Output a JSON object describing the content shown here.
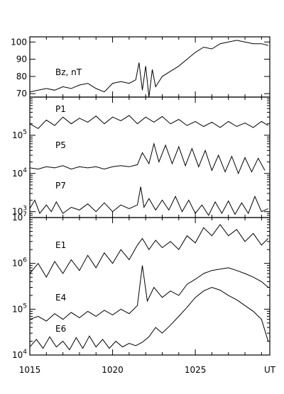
{
  "chart_data": [
    {
      "type": "line",
      "panel": "top",
      "ylim": [
        68,
        103
      ],
      "yscale": "linear",
      "yticks": [
        {
          "value": 70,
          "label": "70"
        },
        {
          "value": 80,
          "label": "80"
        },
        {
          "value": 90,
          "label": "90"
        },
        {
          "value": 100,
          "label": "100"
        }
      ],
      "series": [
        {
          "name": "Bz, nT",
          "x": [
            1015.0,
            1015.5,
            1016.0,
            1016.5,
            1017.0,
            1017.5,
            1018.0,
            1018.5,
            1019.0,
            1019.5,
            1020.0,
            1020.5,
            1021.0,
            1021.4,
            1021.6,
            1021.8,
            1022.0,
            1022.2,
            1022.4,
            1022.6,
            1022.8,
            1023.0,
            1023.5,
            1024.0,
            1024.5,
            1025.0,
            1025.5,
            1026.0,
            1026.5,
            1027.0,
            1027.5,
            1028.0,
            1028.5,
            1029.0,
            1029.4
          ],
          "values": [
            71,
            72,
            73,
            72,
            74,
            73,
            75,
            76,
            73,
            71,
            76,
            77,
            76,
            78,
            88,
            72,
            86,
            68,
            84,
            74,
            77,
            80,
            83,
            86,
            90,
            94,
            97,
            96,
            99,
            100,
            101,
            100,
            99,
            99,
            98
          ]
        }
      ]
    },
    {
      "type": "line",
      "panel": "middle",
      "ylim": [
        700,
        1000000
      ],
      "yscale": "log",
      "yticks": [
        {
          "value": 1000,
          "base": "10",
          "exp": "3"
        },
        {
          "value": 10000,
          "base": "10",
          "exp": "4"
        },
        {
          "value": 100000,
          "base": "10",
          "exp": "5"
        }
      ],
      "series": [
        {
          "name": "P1",
          "x": [
            1015.0,
            1015.5,
            1016.0,
            1016.5,
            1017.0,
            1017.5,
            1018.0,
            1018.5,
            1019.0,
            1019.5,
            1020.0,
            1020.5,
            1021.0,
            1021.5,
            1022.0,
            1022.5,
            1023.0,
            1023.5,
            1024.0,
            1024.5,
            1025.0,
            1025.5,
            1026.0,
            1026.5,
            1027.0,
            1027.5,
            1028.0,
            1028.5,
            1029.0,
            1029.4
          ],
          "values": [
            200000,
            150000,
            250000,
            180000,
            300000,
            200000,
            280000,
            220000,
            320000,
            200000,
            300000,
            240000,
            330000,
            200000,
            300000,
            220000,
            310000,
            200000,
            260000,
            180000,
            230000,
            170000,
            220000,
            160000,
            230000,
            170000,
            210000,
            160000,
            230000,
            180000
          ]
        },
        {
          "name": "P5",
          "x": [
            1015.0,
            1015.5,
            1016.0,
            1016.5,
            1017.0,
            1017.5,
            1018.0,
            1018.5,
            1019.0,
            1019.5,
            1020.0,
            1020.5,
            1021.0,
            1021.5,
            1021.8,
            1022.2,
            1022.5,
            1022.8,
            1023.2,
            1023.6,
            1024.0,
            1024.4,
            1024.8,
            1025.2,
            1025.6,
            1026.0,
            1026.4,
            1026.8,
            1027.2,
            1027.6,
            1028.0,
            1028.4,
            1028.8,
            1029.2
          ],
          "values": [
            14000,
            13000,
            15000,
            14000,
            16000,
            13000,
            15000,
            14000,
            15000,
            13000,
            15000,
            16000,
            15000,
            17000,
            35000,
            18000,
            60000,
            20000,
            55000,
            18000,
            50000,
            16000,
            45000,
            15000,
            40000,
            12000,
            30000,
            11000,
            28000,
            10000,
            26000,
            11000,
            25000,
            12000
          ]
        },
        {
          "name": "P7",
          "x": [
            1015.0,
            1015.3,
            1015.6,
            1016.0,
            1016.3,
            1016.6,
            1017.0,
            1017.5,
            1018.0,
            1018.5,
            1019.0,
            1019.5,
            1020.0,
            1020.5,
            1021.0,
            1021.5,
            1021.7,
            1021.9,
            1022.2,
            1022.6,
            1023.0,
            1023.4,
            1023.8,
            1024.2,
            1024.6,
            1025.0,
            1025.4,
            1025.8,
            1026.2,
            1026.6,
            1027.0,
            1027.4,
            1027.8,
            1028.2,
            1028.6,
            1029.0,
            1029.4
          ],
          "values": [
            1200,
            2000,
            900,
            1500,
            1000,
            1800,
            900,
            1300,
            1100,
            1600,
            1000,
            1700,
            1000,
            1500,
            1200,
            1500,
            4500,
            1300,
            2200,
            1100,
            2000,
            1100,
            2500,
            1000,
            2000,
            900,
            1500,
            800,
            1800,
            900,
            1900,
            850,
            1700,
            900,
            2500,
            1000,
            1200
          ]
        }
      ]
    },
    {
      "type": "line",
      "panel": "bottom",
      "ylim": [
        10000,
        10000000
      ],
      "yscale": "log",
      "yticks": [
        {
          "value": 10000,
          "base": "10",
          "exp": "4"
        },
        {
          "value": 100000,
          "base": "10",
          "exp": "5"
        },
        {
          "value": 1000000,
          "base": "10",
          "exp": "6"
        },
        {
          "value": 10000000,
          "base": "10",
          "exp": "7"
        }
      ],
      "series": [
        {
          "name": "E1",
          "x": [
            1015.0,
            1015.5,
            1016.0,
            1016.5,
            1017.0,
            1017.5,
            1018.0,
            1018.5,
            1019.0,
            1019.5,
            1020.0,
            1020.5,
            1021.0,
            1021.5,
            1021.8,
            1022.2,
            1022.6,
            1023.0,
            1023.5,
            1024.0,
            1024.5,
            1025.0,
            1025.5,
            1026.0,
            1026.5,
            1027.0,
            1027.5,
            1028.0,
            1028.5,
            1029.0,
            1029.4
          ],
          "values": [
            600000,
            1000000,
            500000,
            1100000,
            600000,
            1200000,
            700000,
            1500000,
            800000,
            1700000,
            1000000,
            2000000,
            1200000,
            2500000,
            3500000,
            2000000,
            3200000,
            2200000,
            3000000,
            2000000,
            4000000,
            2800000,
            6000000,
            4000000,
            7000000,
            4000000,
            5500000,
            3000000,
            4500000,
            2500000,
            3500000
          ]
        },
        {
          "name": "E4",
          "x": [
            1015.0,
            1015.5,
            1016.0,
            1016.5,
            1017.0,
            1017.5,
            1018.0,
            1018.5,
            1019.0,
            1019.5,
            1020.0,
            1020.5,
            1021.0,
            1021.5,
            1021.8,
            1022.1,
            1022.5,
            1023.0,
            1023.5,
            1024.0,
            1024.5,
            1025.0,
            1025.5,
            1026.0,
            1026.5,
            1027.0,
            1027.5,
            1028.0,
            1028.5,
            1029.0,
            1029.4
          ],
          "values": [
            60000,
            70000,
            55000,
            80000,
            60000,
            85000,
            65000,
            90000,
            70000,
            95000,
            75000,
            100000,
            80000,
            120000,
            900000,
            150000,
            300000,
            180000,
            250000,
            200000,
            350000,
            450000,
            600000,
            700000,
            750000,
            800000,
            700000,
            600000,
            500000,
            400000,
            300000
          ]
        },
        {
          "name": "E6",
          "x": [
            1015.0,
            1015.4,
            1015.8,
            1016.2,
            1016.6,
            1017.0,
            1017.4,
            1017.8,
            1018.2,
            1018.6,
            1019.0,
            1019.4,
            1019.8,
            1020.2,
            1020.6,
            1021.0,
            1021.4,
            1021.8,
            1022.2,
            1022.6,
            1023.0,
            1023.5,
            1024.0,
            1024.5,
            1025.0,
            1025.5,
            1026.0,
            1026.5,
            1027.0,
            1027.5,
            1028.0,
            1028.5,
            1029.0,
            1029.4
          ],
          "values": [
            15000,
            22000,
            14000,
            25000,
            15000,
            20000,
            13000,
            24000,
            14000,
            26000,
            15000,
            22000,
            14000,
            20000,
            15000,
            18000,
            16000,
            19000,
            25000,
            40000,
            30000,
            45000,
            70000,
            110000,
            180000,
            250000,
            300000,
            260000,
            200000,
            160000,
            120000,
            90000,
            60000,
            20000
          ]
        }
      ]
    }
  ],
  "x_axis": {
    "xlim": [
      1015,
      1029.5
    ],
    "ticks": [
      {
        "value": 1015,
        "label": "1015"
      },
      {
        "value": 1020,
        "label": "1020"
      },
      {
        "value": 1025,
        "label": "1025"
      },
      {
        "value": 1029.5,
        "label": "UT"
      }
    ]
  }
}
